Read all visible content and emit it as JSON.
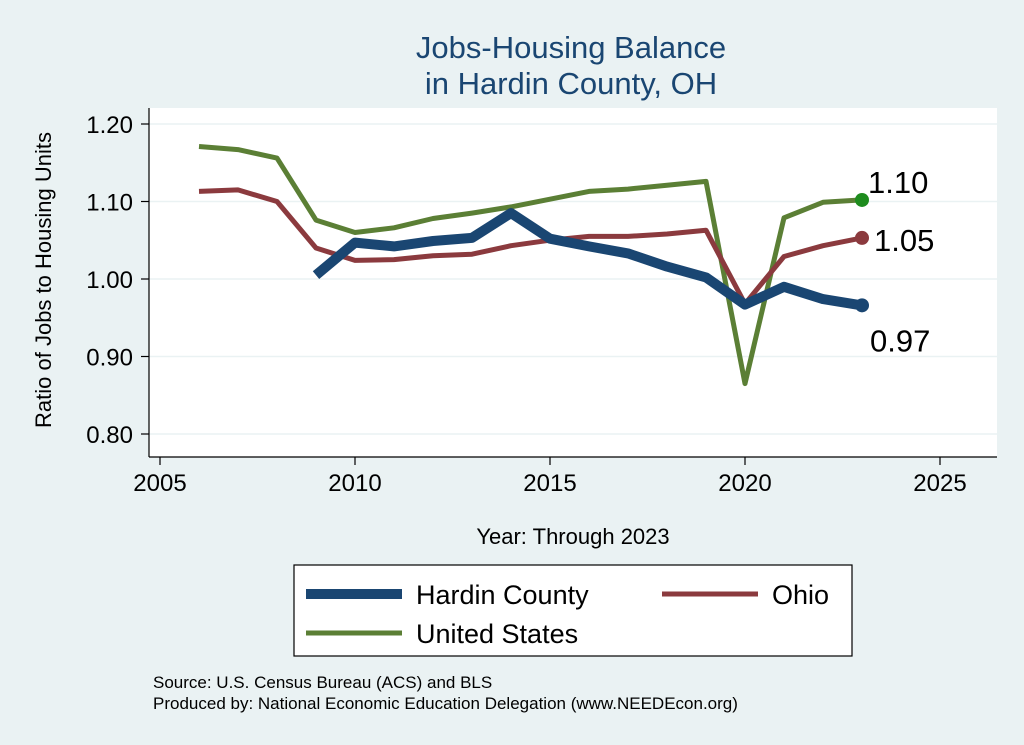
{
  "chart_data": {
    "type": "line",
    "title": [
      "Jobs-Housing Balance",
      "in Hardin County, OH"
    ],
    "xlabel": "Year: Through 2023",
    "ylabel": "Ratio of Jobs to Housing Units",
    "xlim": [
      2005,
      2025
    ],
    "ylim": [
      0.8,
      1.2
    ],
    "x_ticks": [
      2005,
      2010,
      2015,
      2020,
      2025
    ],
    "x_tick_labels": [
      "2005",
      "2010",
      "2015",
      "2020",
      "2025"
    ],
    "y_ticks": [
      0.8,
      0.9,
      1.0,
      1.1,
      1.2
    ],
    "y_tick_labels": [
      "0.80",
      "0.90",
      "1.00",
      "1.10",
      "1.20"
    ],
    "grid": "horizontal",
    "legend_position": "bottom",
    "series": [
      {
        "name": "Hardin County",
        "color": "#1a4672",
        "x": [
          2009,
          2010,
          2011,
          2012,
          2013,
          2014,
          2015,
          2016,
          2017,
          2018,
          2019,
          2020,
          2021,
          2022,
          2023
        ],
        "values": [
          1.005,
          1.047,
          1.042,
          1.049,
          1.053,
          1.085,
          1.052,
          1.042,
          1.033,
          1.016,
          1.002,
          0.967,
          0.99,
          0.974,
          0.966
        ],
        "end_label": "0.97",
        "end_marker_color": "#1a4672"
      },
      {
        "name": "Ohio",
        "color": "#8b3a3e",
        "x": [
          2006,
          2007,
          2008,
          2009,
          2010,
          2011,
          2012,
          2013,
          2014,
          2015,
          2016,
          2017,
          2018,
          2019,
          2020,
          2021,
          2022,
          2023
        ],
        "values": [
          1.113,
          1.115,
          1.1,
          1.04,
          1.024,
          1.025,
          1.03,
          1.032,
          1.043,
          1.05,
          1.055,
          1.055,
          1.058,
          1.063,
          0.968,
          1.029,
          1.043,
          1.053
        ],
        "end_label": "1.05",
        "end_marker_color": "#8b3a3e"
      },
      {
        "name": "United States",
        "color": "#5b7f35",
        "x": [
          2006,
          2007,
          2008,
          2009,
          2010,
          2011,
          2012,
          2013,
          2014,
          2015,
          2016,
          2017,
          2018,
          2019,
          2020,
          2021,
          2022,
          2023
        ],
        "values": [
          1.171,
          1.167,
          1.156,
          1.076,
          1.06,
          1.066,
          1.078,
          1.085,
          1.093,
          1.103,
          1.113,
          1.116,
          1.121,
          1.126,
          0.865,
          1.079,
          1.099,
          1.102
        ],
        "end_label": "1.10",
        "end_marker_color": "#1e8c1e"
      }
    ],
    "notes": [
      "Source: U.S. Census Bureau (ACS) and BLS",
      "Produced by: National Economic Education Delegation (www.NEEDEcon.org)"
    ]
  }
}
